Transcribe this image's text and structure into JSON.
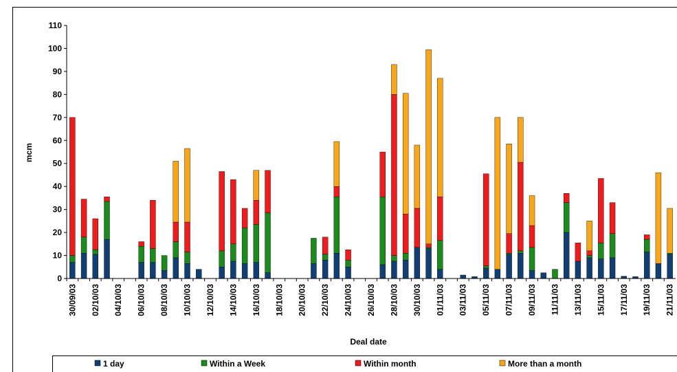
{
  "chart_data": {
    "type": "bar",
    "stacked": true,
    "x_label": "Deal date",
    "y_label": "mcm",
    "categories": [
      "30/09/03",
      null,
      "02/10/03",
      null,
      "04/10/03",
      null,
      "06/10/03",
      null,
      "08/10/03",
      null,
      "10/10/03",
      null,
      "12/10/03",
      null,
      "14/10/03",
      null,
      "16/10/03",
      null,
      "18/10/03",
      null,
      "20/10/03",
      null,
      "22/10/03",
      null,
      "24/10/03",
      null,
      "26/10/03",
      null,
      "28/10/03",
      null,
      "30/10/03",
      null,
      "01/11/03",
      null,
      "03/11/03",
      null,
      "05/11/03",
      null,
      "07/11/03",
      null,
      "09/11/03",
      null,
      "11/11/03",
      null,
      "13/11/03",
      null,
      "15/11/03",
      null,
      "17/11/03",
      null,
      "19/11/03",
      null,
      "21/11/03"
    ],
    "series": [
      {
        "name": "1 day",
        "color": "#123f73",
        "values": [
          7,
          11,
          10.5,
          17,
          0,
          0,
          7,
          7,
          3.5,
          9,
          6.5,
          4,
          0,
          5,
          7.5,
          6.5,
          7,
          2.5,
          0,
          0,
          0,
          6.5,
          8,
          11,
          5,
          0,
          0,
          6,
          7.5,
          8,
          13.5,
          13,
          4,
          0,
          1.5,
          0.8,
          4.5,
          4,
          10.5,
          11,
          3.5,
          2.5,
          0,
          20,
          7.5,
          9,
          8.5,
          9,
          1,
          0.8,
          11.5,
          6.5,
          10.5
        ]
      },
      {
        "name": "Within a Week",
        "color": "#1c8a1c",
        "values": [
          3,
          7,
          2,
          16.5,
          0,
          0,
          7,
          6,
          6.5,
          7,
          5,
          0,
          0,
          7,
          7.5,
          15.5,
          16.5,
          26,
          0,
          0,
          0,
          11,
          2.5,
          24.5,
          3,
          0,
          0,
          29.5,
          2.5,
          3,
          0,
          0.5,
          12.5,
          0,
          0,
          0,
          1,
          0,
          0.5,
          1,
          10,
          0,
          4,
          13,
          0,
          1,
          7,
          10.5,
          0,
          0,
          5.5,
          0,
          0.5
        ]
      },
      {
        "name": "Within month",
        "color": "#ee1c1c",
        "values": [
          60,
          16.5,
          13.5,
          2,
          0,
          0,
          2,
          21,
          0,
          8.5,
          13,
          0,
          0,
          34.5,
          28,
          8.5,
          10.5,
          18.5,
          0,
          0,
          0,
          0,
          7.5,
          4.5,
          4.5,
          0,
          0,
          19.5,
          70,
          17,
          17,
          1.5,
          19,
          0,
          0,
          0,
          40,
          0,
          8.5,
          38.5,
          9.5,
          0,
          0,
          4,
          8,
          2,
          28,
          13.5,
          0,
          0,
          2,
          0,
          0
        ]
      },
      {
        "name": "More than a month",
        "color": "#f9a61a",
        "values": [
          0,
          0,
          0,
          0,
          0,
          0,
          0,
          0,
          0,
          26.5,
          32,
          0,
          0,
          0,
          0,
          0,
          13,
          0,
          0,
          0,
          0,
          0,
          0,
          19.5,
          0,
          0,
          0,
          0,
          13,
          52.5,
          27.5,
          84.5,
          51.5,
          0,
          0,
          0,
          0,
          66,
          39,
          19.5,
          13,
          0,
          0,
          0,
          0,
          13,
          0,
          0,
          0,
          0,
          0,
          39.5,
          19.5
        ]
      }
    ],
    "ylim": [
      0,
      110
    ],
    "yticks": [
      0,
      10,
      20,
      30,
      40,
      50,
      60,
      70,
      80,
      90,
      100,
      110
    ],
    "legend": "bottom"
  }
}
